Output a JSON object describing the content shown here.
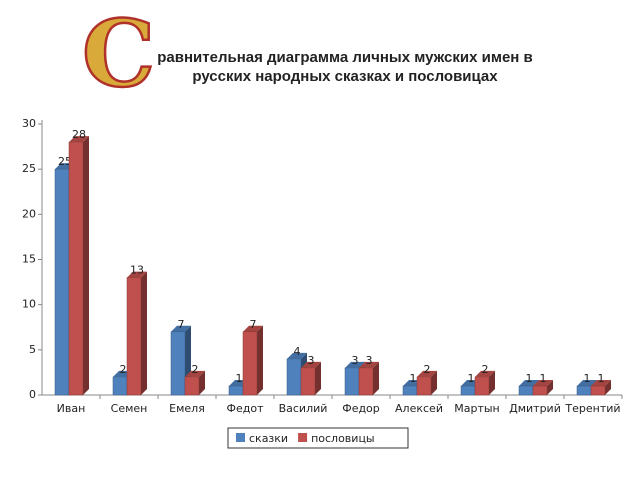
{
  "chart_data": {
    "type": "bar3d",
    "drop_cap": "С",
    "title_lines": [
      "равнительная диаграмма личных мужских имен в",
      "русских народных сказках и пословицах"
    ],
    "categories": [
      "Иван",
      "Семен",
      "Емеля",
      "Федот",
      "Василий",
      "Федор",
      "Алексей",
      "Мартын",
      "Дмитрий",
      "Терентий"
    ],
    "series": [
      {
        "name": "сказки",
        "color": "#4f81bd",
        "values": [
          25,
          2,
          7,
          1,
          4,
          3,
          1,
          1,
          1,
          1
        ]
      },
      {
        "name": "пословицы",
        "color": "#c0504d",
        "values": [
          28,
          13,
          2,
          7,
          3,
          3,
          2,
          2,
          1,
          1
        ]
      }
    ],
    "ylim": [
      0,
      30
    ],
    "yticks": [
      0,
      5,
      10,
      15,
      20,
      25,
      30
    ],
    "legend": "bottom"
  }
}
